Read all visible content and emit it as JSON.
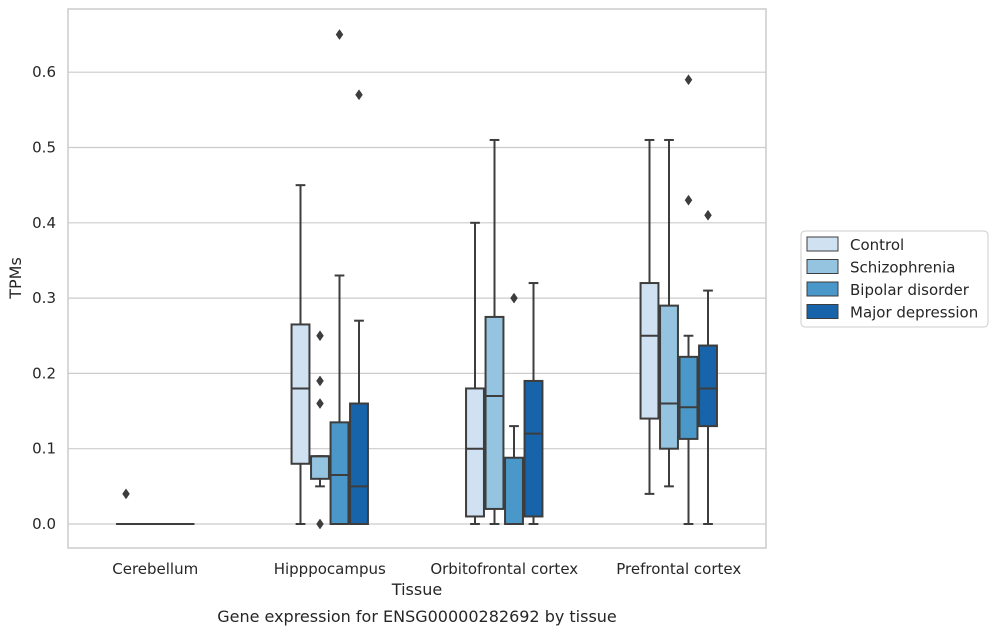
{
  "caption": "Gene expression for ENSG00000282692 by tissue",
  "chart_data": {
    "type": "box",
    "xlabel": "Tissue",
    "ylabel": "TPMs",
    "ylim": [
      -0.032,
      0.682
    ],
    "yticks": [
      0.0,
      0.1,
      0.2,
      0.3,
      0.4,
      0.5,
      0.6
    ],
    "ytick_labels": [
      "0.0",
      "0.1",
      "0.2",
      "0.3",
      "0.4",
      "0.5",
      "0.6"
    ],
    "grid": true,
    "legend_position": "right",
    "categories": [
      "Cerebellum",
      "Hipppocampus",
      "Orbitofrontal cortex",
      "Prefrontal cortex"
    ],
    "series": [
      {
        "name": "Control",
        "color": "#d0e1f2",
        "boxes": [
          {
            "whislo": 0.0,
            "q1": 0.0,
            "med": 0.0,
            "q3": 0.0,
            "whishi": 0.0,
            "fliers": [
              0.04
            ]
          },
          {
            "whislo": 0.0,
            "q1": 0.08,
            "med": 0.18,
            "q3": 0.265,
            "whishi": 0.45,
            "fliers": []
          },
          {
            "whislo": 0.0,
            "q1": 0.01,
            "med": 0.1,
            "q3": 0.18,
            "whishi": 0.4,
            "fliers": []
          },
          {
            "whislo": 0.04,
            "q1": 0.14,
            "med": 0.25,
            "q3": 0.32,
            "whishi": 0.51,
            "fliers": []
          }
        ]
      },
      {
        "name": "Schizophrenia",
        "color": "#94c4df",
        "boxes": [
          {
            "whislo": 0.0,
            "q1": 0.0,
            "med": 0.0,
            "q3": 0.0,
            "whishi": 0.0,
            "fliers": []
          },
          {
            "whislo": 0.05,
            "q1": 0.06,
            "med": 0.09,
            "q3": 0.09,
            "whishi": 0.09,
            "fliers": [
              0.16,
              0.19,
              0.25,
              0.0
            ]
          },
          {
            "whislo": 0.0,
            "q1": 0.02,
            "med": 0.17,
            "q3": 0.275,
            "whishi": 0.51,
            "fliers": []
          },
          {
            "whislo": 0.05,
            "q1": 0.1,
            "med": 0.16,
            "q3": 0.29,
            "whishi": 0.51,
            "fliers": []
          }
        ]
      },
      {
        "name": "Bipolar disorder",
        "color": "#4a98c9",
        "boxes": [
          {
            "whislo": 0.0,
            "q1": 0.0,
            "med": 0.0,
            "q3": 0.0,
            "whishi": 0.0,
            "fliers": []
          },
          {
            "whislo": 0.0,
            "q1": 0.0,
            "med": 0.065,
            "q3": 0.135,
            "whishi": 0.33,
            "fliers": [
              0.65
            ]
          },
          {
            "whislo": 0.0,
            "q1": 0.0,
            "med": 0.0,
            "q3": 0.088,
            "whishi": 0.13,
            "fliers": [
              0.3
            ]
          },
          {
            "whislo": 0.0,
            "q1": 0.113,
            "med": 0.155,
            "q3": 0.222,
            "whishi": 0.25,
            "fliers": [
              0.43,
              0.59
            ]
          }
        ]
      },
      {
        "name": "Major depression",
        "color": "#1764ab",
        "boxes": [
          {
            "whislo": 0.0,
            "q1": 0.0,
            "med": 0.0,
            "q3": 0.0,
            "whishi": 0.0,
            "fliers": []
          },
          {
            "whislo": 0.0,
            "q1": 0.0,
            "med": 0.05,
            "q3": 0.16,
            "whishi": 0.27,
            "fliers": [
              0.57
            ]
          },
          {
            "whislo": 0.0,
            "q1": 0.01,
            "med": 0.12,
            "q3": 0.19,
            "whishi": 0.32,
            "fliers": []
          },
          {
            "whislo": 0.0,
            "q1": 0.13,
            "med": 0.18,
            "q3": 0.237,
            "whishi": 0.31,
            "fliers": [
              0.41
            ]
          }
        ]
      }
    ]
  }
}
